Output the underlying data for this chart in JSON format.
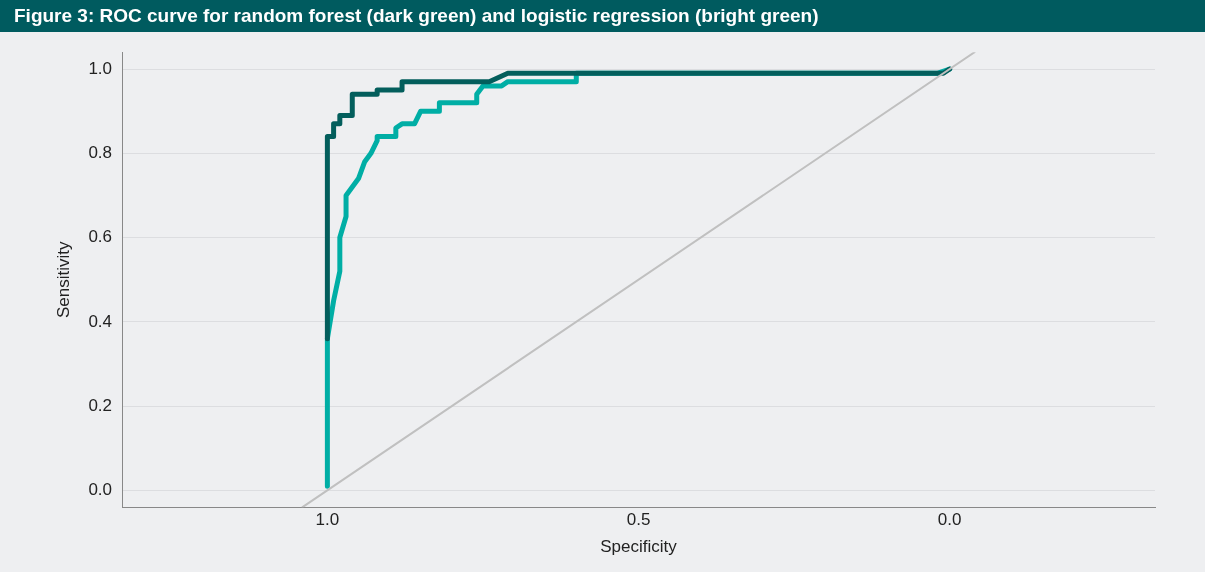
{
  "chart_data": {
    "type": "line",
    "title": "Figure 3: ROC curve for random forest (dark green) and logistic regression (bright green)",
    "xlabel": "Specificity",
    "ylabel": "Sensitivity",
    "xlim": [
      1.33,
      -0.33
    ],
    "ylim": [
      -0.04,
      1.04
    ],
    "xticks": [
      {
        "value": 1,
        "label": "1.0"
      },
      {
        "value": 0.5,
        "label": "0.5"
      },
      {
        "value": 0,
        "label": "0.0"
      }
    ],
    "yticks": [
      {
        "value": 0,
        "label": "0.0"
      },
      {
        "value": 0.2,
        "label": "0.2"
      },
      {
        "value": 0.4,
        "label": "0.4"
      },
      {
        "value": 0.6,
        "label": "0.6"
      },
      {
        "value": 0.8,
        "label": "0.8"
      },
      {
        "value": 1,
        "label": "1.0"
      }
    ],
    "grid": "y",
    "legend": false,
    "marker": "none",
    "line_style": "solid",
    "series": [
      {
        "color": "#c0c0c0",
        "x": [
          1.04,
          -0.04
        ],
        "values": [
          -0.04,
          1.04
        ]
      },
      {
        "color": "#035e5c",
        "x": [
          1.0,
          1.0,
          0.99,
          0.99,
          0.98,
          0.98,
          0.96,
          0.96,
          0.92,
          0.92,
          0.88,
          0.88,
          0.74,
          0.71,
          0.01,
          0.0
        ],
        "values": [
          0.36,
          0.84,
          0.84,
          0.87,
          0.87,
          0.89,
          0.89,
          0.94,
          0.94,
          0.95,
          0.95,
          0.97,
          0.97,
          0.99,
          0.99,
          1.0
        ]
      },
      {
        "color": "#00aea5",
        "x": [
          1.0,
          1.0,
          0.99,
          0.98,
          0.98,
          0.97,
          0.97,
          0.96,
          0.95,
          0.94,
          0.93,
          0.92,
          0.92,
          0.89,
          0.89,
          0.88,
          0.86,
          0.85,
          0.82,
          0.82,
          0.76,
          0.76,
          0.75,
          0.72,
          0.71,
          0.6,
          0.6,
          0.02,
          0.0
        ],
        "values": [
          0.01,
          0.36,
          0.45,
          0.52,
          0.6,
          0.65,
          0.7,
          0.72,
          0.74,
          0.78,
          0.8,
          0.83,
          0.84,
          0.84,
          0.86,
          0.87,
          0.87,
          0.9,
          0.9,
          0.92,
          0.92,
          0.94,
          0.96,
          0.96,
          0.97,
          0.97,
          0.99,
          0.99,
          1.0
        ]
      }
    ]
  }
}
